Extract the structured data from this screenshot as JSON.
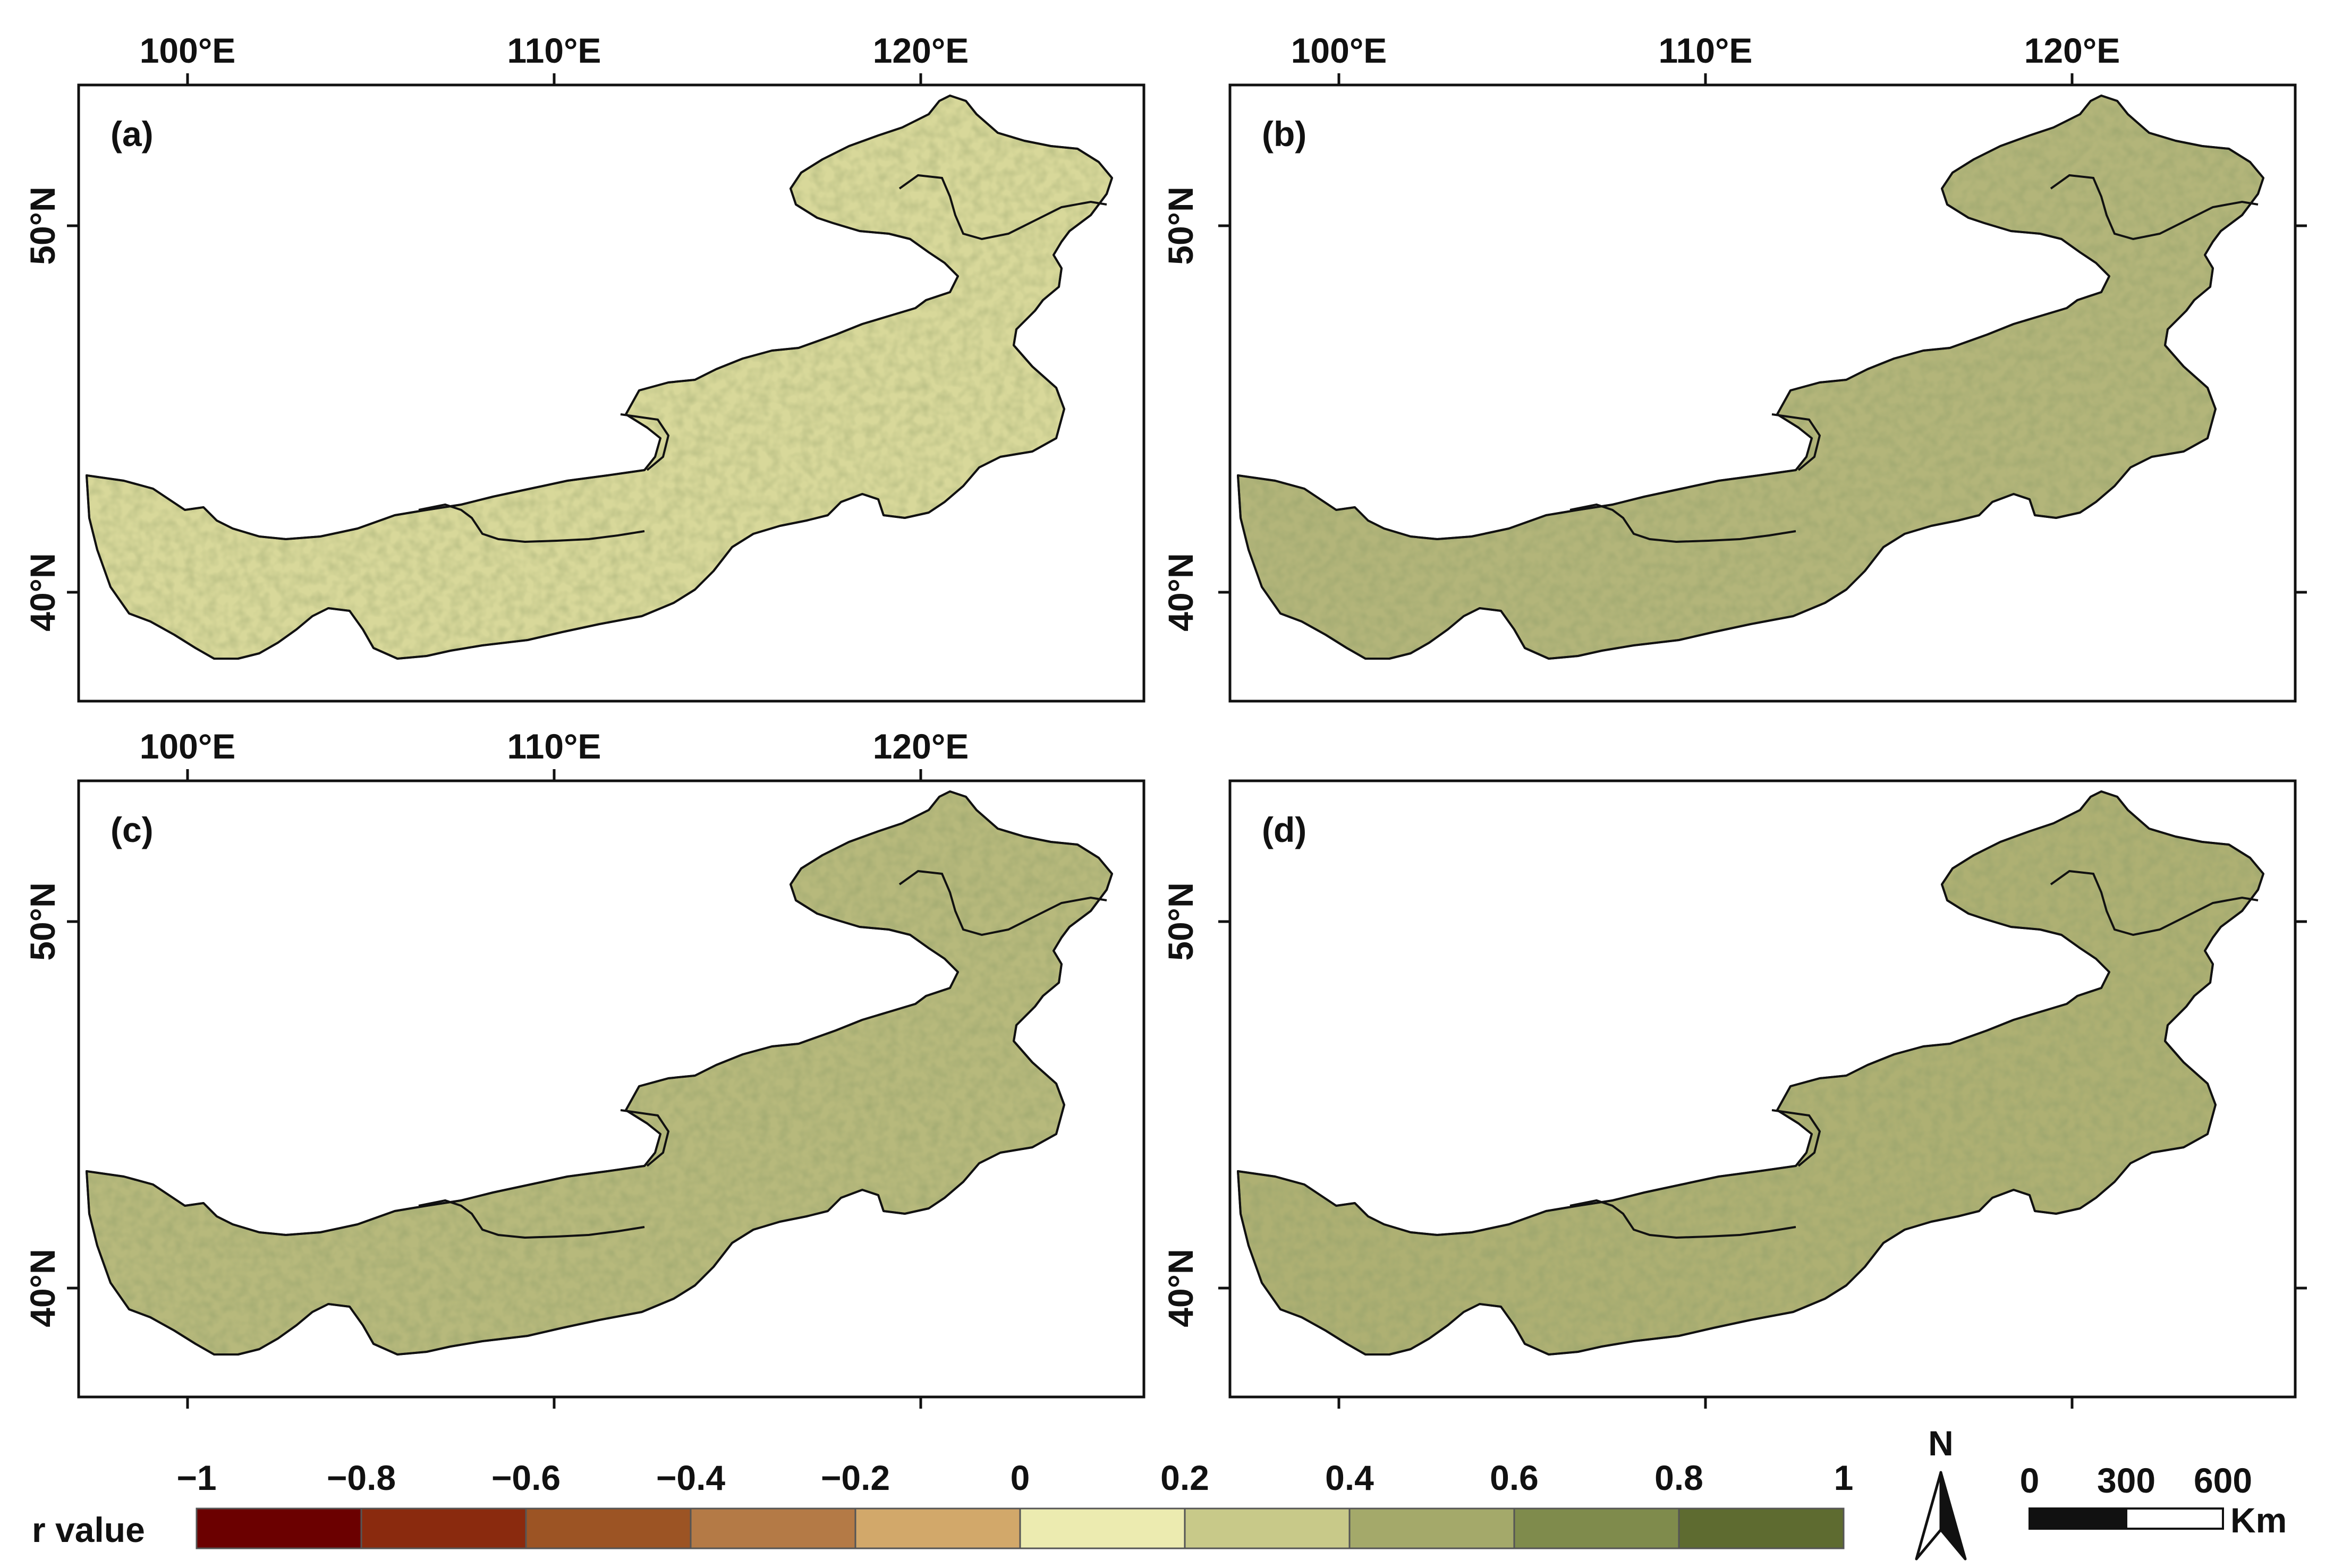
{
  "chart_data": {
    "type": "heatmap",
    "panels": [
      {
        "label": "(a)"
      },
      {
        "label": "(b)"
      },
      {
        "label": "(c)"
      },
      {
        "label": "(d)"
      }
    ],
    "x_ticks": [
      "100°E",
      "110°E",
      "120°E"
    ],
    "x_tick_values": [
      100,
      110,
      120
    ],
    "y_ticks": [
      "40°N",
      "50°N"
    ],
    "y_tick_values": [
      40,
      50
    ],
    "colorbar": {
      "title": "r value",
      "tick_labels": [
        "−1",
        "−0.8",
        "−0.6",
        "−0.4",
        "−0.2",
        "0",
        "0.2",
        "0.4",
        "0.6",
        "0.8",
        "1"
      ],
      "bins": [
        {
          "min": -1.0,
          "max": -0.8,
          "color": "#6b0000"
        },
        {
          "min": -0.8,
          "max": -0.6,
          "color": "#8a2a0e"
        },
        {
          "min": -0.6,
          "max": -0.4,
          "color": "#9c5424"
        },
        {
          "min": -0.4,
          "max": -0.2,
          "color": "#b47a46"
        },
        {
          "min": -0.2,
          "max": 0.0,
          "color": "#d2a86a"
        },
        {
          "min": 0.0,
          "max": 0.2,
          "color": "#ecebb0"
        },
        {
          "min": 0.2,
          "max": 0.4,
          "color": "#c8c989"
        },
        {
          "min": 0.4,
          "max": 0.6,
          "color": "#a4a96a"
        },
        {
          "min": 0.6,
          "max": 0.8,
          "color": "#7f8b4c"
        },
        {
          "min": 0.8,
          "max": 1.0,
          "color": "#5e6b30"
        }
      ]
    }
  },
  "north_arrow": {
    "label": "N",
    "icon": "north-arrow-icon"
  },
  "scale_bar": {
    "tick_labels": [
      "0",
      "300",
      "600"
    ],
    "unit": "Km"
  }
}
